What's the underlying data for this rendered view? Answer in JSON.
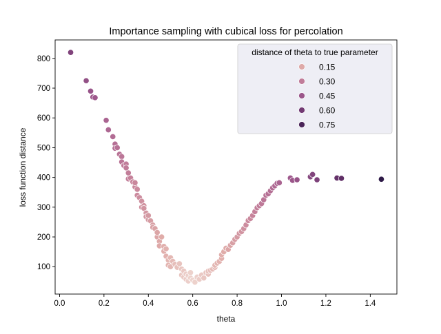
{
  "chart_data": {
    "type": "scatter",
    "title": "Importance sampling with cubical loss for percolation",
    "xlabel": "theta",
    "ylabel": "loss function distance",
    "xlim": [
      -0.02,
      1.52
    ],
    "ylim": [
      8,
      862
    ],
    "xticks": [
      0.0,
      0.2,
      0.4,
      0.6,
      0.8,
      1.0,
      1.2,
      1.4
    ],
    "xtick_labels": [
      "0.0",
      "0.2",
      "0.4",
      "0.6",
      "0.8",
      "1.0",
      "1.2",
      "1.4"
    ],
    "yticks": [
      100,
      200,
      300,
      400,
      500,
      600,
      700,
      800
    ],
    "ytick_labels": [
      "100",
      "200",
      "300",
      "400",
      "500",
      "600",
      "700",
      "800"
    ],
    "grid": false,
    "hue": {
      "title": "distance of theta to true parameter",
      "legend_values": [
        "0.15",
        "0.30",
        "0.45",
        "0.60",
        "0.75"
      ],
      "legend_placement": "top-right",
      "true_parameter": 0.6,
      "colors": [
        "#eed5cf",
        "#e0aca9",
        "#c4809a",
        "#a25b8e",
        "#7b4079",
        "#56285f",
        "#2e1a47"
      ]
    },
    "points": [
      [
        0.05,
        820
      ],
      [
        0.12,
        725
      ],
      [
        0.14,
        690
      ],
      [
        0.15,
        670
      ],
      [
        0.16,
        668
      ],
      [
        0.21,
        592
      ],
      [
        0.22,
        560
      ],
      [
        0.24,
        537
      ],
      [
        0.25,
        512
      ],
      [
        0.25,
        498
      ],
      [
        0.26,
        500
      ],
      [
        0.27,
        478
      ],
      [
        0.28,
        470
      ],
      [
        0.28,
        452
      ],
      [
        0.29,
        440
      ],
      [
        0.3,
        445
      ],
      [
        0.3,
        432
      ],
      [
        0.31,
        415
      ],
      [
        0.31,
        395
      ],
      [
        0.32,
        398
      ],
      [
        0.33,
        385
      ],
      [
        0.34,
        368
      ],
      [
        0.34,
        382
      ],
      [
        0.35,
        360
      ],
      [
        0.35,
        340
      ],
      [
        0.36,
        332
      ],
      [
        0.37,
        320
      ],
      [
        0.37,
        300
      ],
      [
        0.38,
        305
      ],
      [
        0.38,
        296
      ],
      [
        0.39,
        280
      ],
      [
        0.39,
        268
      ],
      [
        0.4,
        258
      ],
      [
        0.4,
        272
      ],
      [
        0.41,
        254
      ],
      [
        0.42,
        240
      ],
      [
        0.42,
        232
      ],
      [
        0.43,
        228
      ],
      [
        0.44,
        200
      ],
      [
        0.44,
        215
      ],
      [
        0.45,
        185
      ],
      [
        0.45,
        170
      ],
      [
        0.46,
        200
      ],
      [
        0.47,
        168
      ],
      [
        0.47,
        152
      ],
      [
        0.48,
        160
      ],
      [
        0.48,
        135
      ],
      [
        0.49,
        122
      ],
      [
        0.49,
        105
      ],
      [
        0.5,
        130
      ],
      [
        0.5,
        100
      ],
      [
        0.51,
        118
      ],
      [
        0.52,
        108
      ],
      [
        0.53,
        98
      ],
      [
        0.54,
        110
      ],
      [
        0.55,
        92
      ],
      [
        0.55,
        72
      ],
      [
        0.56,
        65
      ],
      [
        0.56,
        85
      ],
      [
        0.57,
        58
      ],
      [
        0.57,
        75
      ],
      [
        0.58,
        70
      ],
      [
        0.58,
        52
      ],
      [
        0.59,
        62
      ],
      [
        0.59,
        80
      ],
      [
        0.6,
        55
      ],
      [
        0.61,
        48
      ],
      [
        0.62,
        65
      ],
      [
        0.63,
        58
      ],
      [
        0.64,
        72
      ],
      [
        0.65,
        62
      ],
      [
        0.66,
        80
      ],
      [
        0.67,
        75
      ],
      [
        0.67,
        85
      ],
      [
        0.68,
        88
      ],
      [
        0.69,
        92
      ],
      [
        0.7,
        98
      ],
      [
        0.7,
        105
      ],
      [
        0.71,
        112
      ],
      [
        0.72,
        118
      ],
      [
        0.73,
        128
      ],
      [
        0.73,
        140
      ],
      [
        0.74,
        150
      ],
      [
        0.75,
        162
      ],
      [
        0.76,
        158
      ],
      [
        0.77,
        172
      ],
      [
        0.78,
        180
      ],
      [
        0.79,
        192
      ],
      [
        0.8,
        200
      ],
      [
        0.81,
        212
      ],
      [
        0.82,
        218
      ],
      [
        0.83,
        228
      ],
      [
        0.84,
        240
      ],
      [
        0.85,
        255
      ],
      [
        0.86,
        262
      ],
      [
        0.87,
        272
      ],
      [
        0.88,
        285
      ],
      [
        0.89,
        298
      ],
      [
        0.9,
        305
      ],
      [
        0.91,
        312
      ],
      [
        0.92,
        325
      ],
      [
        0.93,
        340
      ],
      [
        0.94,
        345
      ],
      [
        0.95,
        355
      ],
      [
        0.96,
        365
      ],
      [
        0.97,
        372
      ],
      [
        0.98,
        380
      ],
      [
        0.99,
        382
      ],
      [
        1.04,
        398
      ],
      [
        1.05,
        390
      ],
      [
        1.07,
        392
      ],
      [
        1.13,
        402
      ],
      [
        1.14,
        410
      ],
      [
        1.16,
        392
      ],
      [
        1.25,
        398
      ],
      [
        1.27,
        397
      ],
      [
        1.45,
        394
      ]
    ]
  }
}
